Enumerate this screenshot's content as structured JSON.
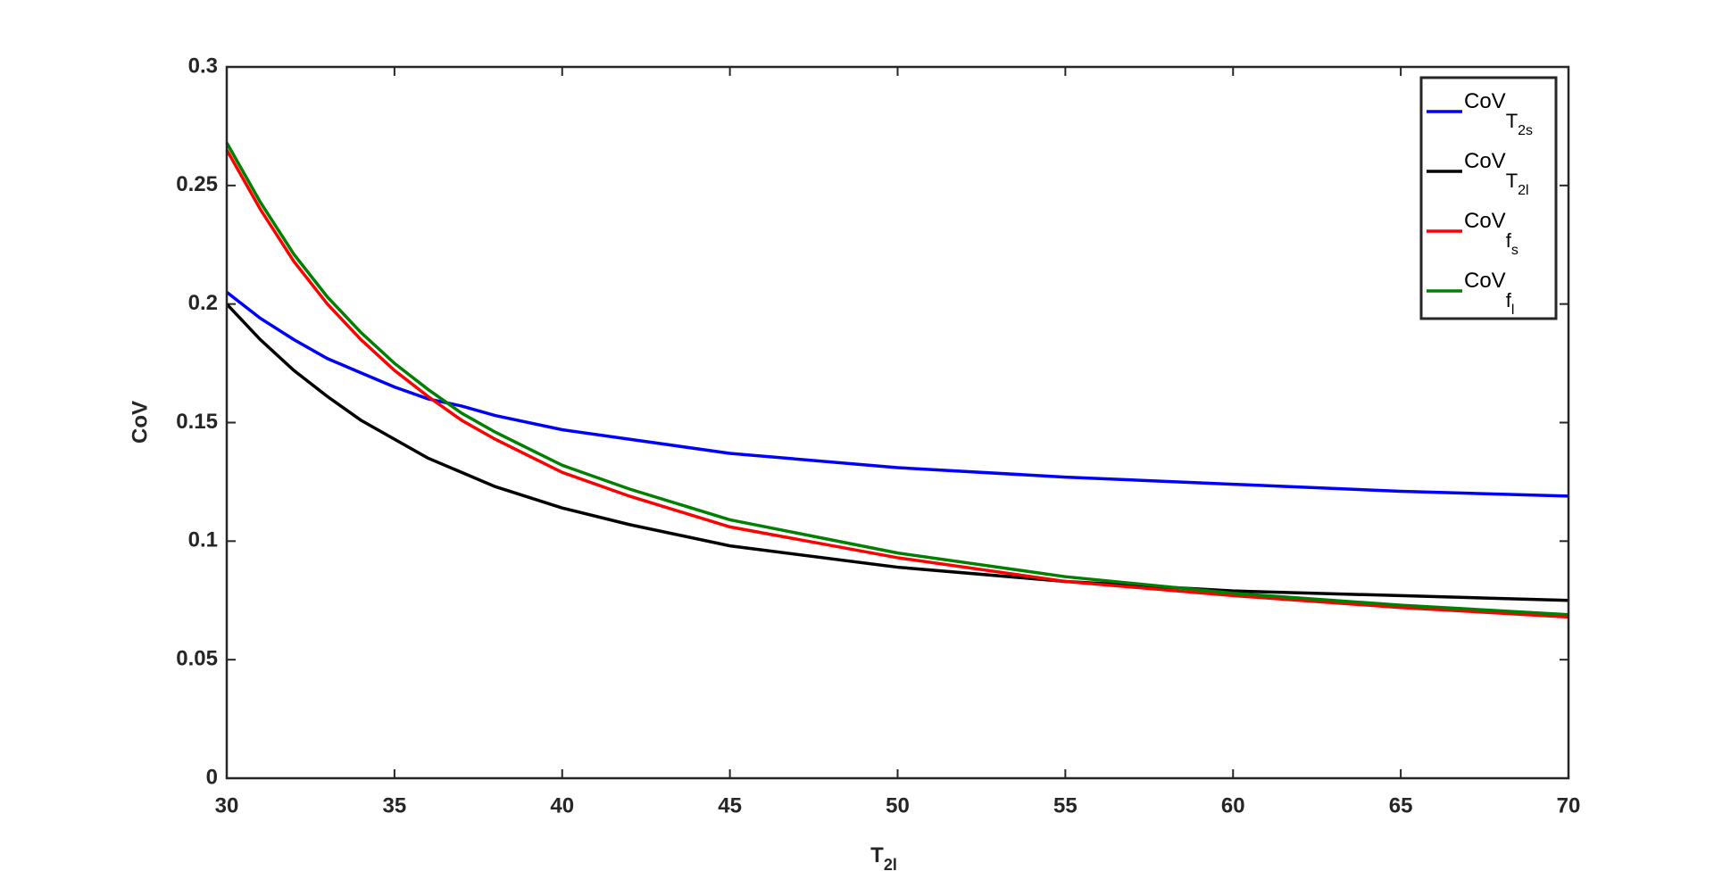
{
  "chart_data": {
    "type": "line",
    "y_label": "CoV",
    "x_label": [
      "T",
      "2l"
    ],
    "x": [
      30,
      31,
      32,
      33,
      34,
      35,
      36,
      37,
      38,
      40,
      42,
      45,
      50,
      55,
      60,
      65,
      70
    ],
    "series": [
      {
        "name": [
          "CoV",
          "T",
          "2s"
        ],
        "color": "#0000ff",
        "values": [
          0.205,
          0.194,
          0.185,
          0.177,
          0.171,
          0.165,
          0.16,
          0.157,
          0.153,
          0.147,
          0.143,
          0.137,
          0.131,
          0.127,
          0.124,
          0.121,
          0.119
        ]
      },
      {
        "name": [
          "CoV",
          "T",
          "2l"
        ],
        "color": "#000000",
        "values": [
          0.2,
          0.185,
          0.172,
          0.161,
          0.151,
          0.143,
          0.135,
          0.129,
          0.123,
          0.114,
          0.107,
          0.098,
          0.089,
          0.083,
          0.079,
          0.077,
          0.075
        ]
      },
      {
        "name": [
          "CoV",
          "f",
          "s"
        ],
        "color": "#ff0000",
        "values": [
          0.265,
          0.24,
          0.218,
          0.2,
          0.185,
          0.172,
          0.161,
          0.151,
          0.143,
          0.129,
          0.119,
          0.106,
          0.093,
          0.083,
          0.077,
          0.072,
          0.068
        ]
      },
      {
        "name": [
          "CoV",
          "f",
          "l"
        ],
        "color": "#008000",
        "values": [
          0.268,
          0.243,
          0.221,
          0.203,
          0.188,
          0.175,
          0.164,
          0.154,
          0.146,
          0.132,
          0.122,
          0.109,
          0.095,
          0.085,
          0.078,
          0.073,
          0.069
        ]
      }
    ],
    "xlim": [
      30,
      70
    ],
    "xticks": [
      30,
      35,
      40,
      45,
      50,
      55,
      60,
      65,
      70
    ],
    "ylim": [
      0,
      0.3
    ],
    "yticks": [
      0,
      0.05,
      0.1,
      0.15,
      0.2,
      0.25,
      0.3
    ],
    "grid": false,
    "legend": "top-right"
  }
}
